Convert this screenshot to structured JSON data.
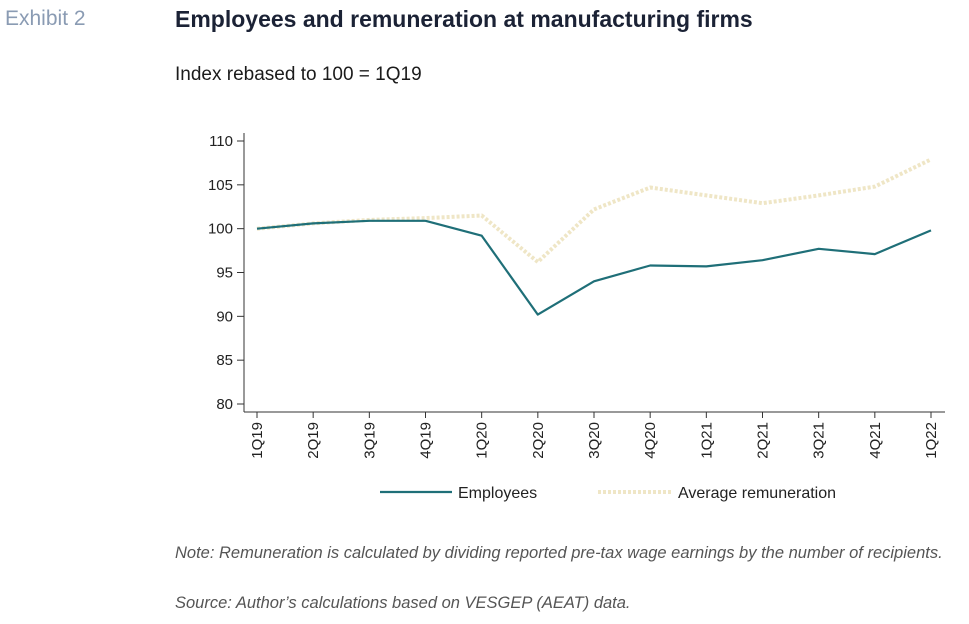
{
  "header": {
    "exhibit_label": "Exhibit 2",
    "title": "Employees and remuneration at manufacturing firms",
    "subtitle": "Index rebased to 100 = 1Q19"
  },
  "chart_data": {
    "type": "line",
    "categories": [
      "1Q19",
      "2Q19",
      "3Q19",
      "4Q19",
      "1Q20",
      "2Q20",
      "3Q20",
      "4Q20",
      "1Q21",
      "2Q21",
      "3Q21",
      "4Q21",
      "1Q22"
    ],
    "ylim": [
      80,
      110
    ],
    "yticks": [
      80,
      85,
      90,
      95,
      100,
      105,
      110
    ],
    "grid": false,
    "legend_position": "bottom",
    "series": [
      {
        "name": "Employees",
        "color": "#1f6f78",
        "style": "solid",
        "values": [
          100.0,
          100.6,
          100.9,
          100.9,
          99.2,
          90.2,
          94.0,
          95.8,
          95.7,
          96.4,
          97.7,
          97.1,
          99.8
        ]
      },
      {
        "name": "Average remuneration",
        "color": "#efe6c6",
        "style": "dotted",
        "values": [
          100.0,
          100.6,
          101.0,
          101.2,
          101.5,
          96.2,
          102.2,
          104.7,
          103.8,
          102.9,
          103.8,
          104.8,
          107.9
        ]
      }
    ]
  },
  "footer": {
    "note": "Note: Remuneration is calculated by dividing reported pre-tax wage earnings by the number of recipients.",
    "source": "Source: Author’s calculations based on VESGEP (AEAT) data."
  }
}
